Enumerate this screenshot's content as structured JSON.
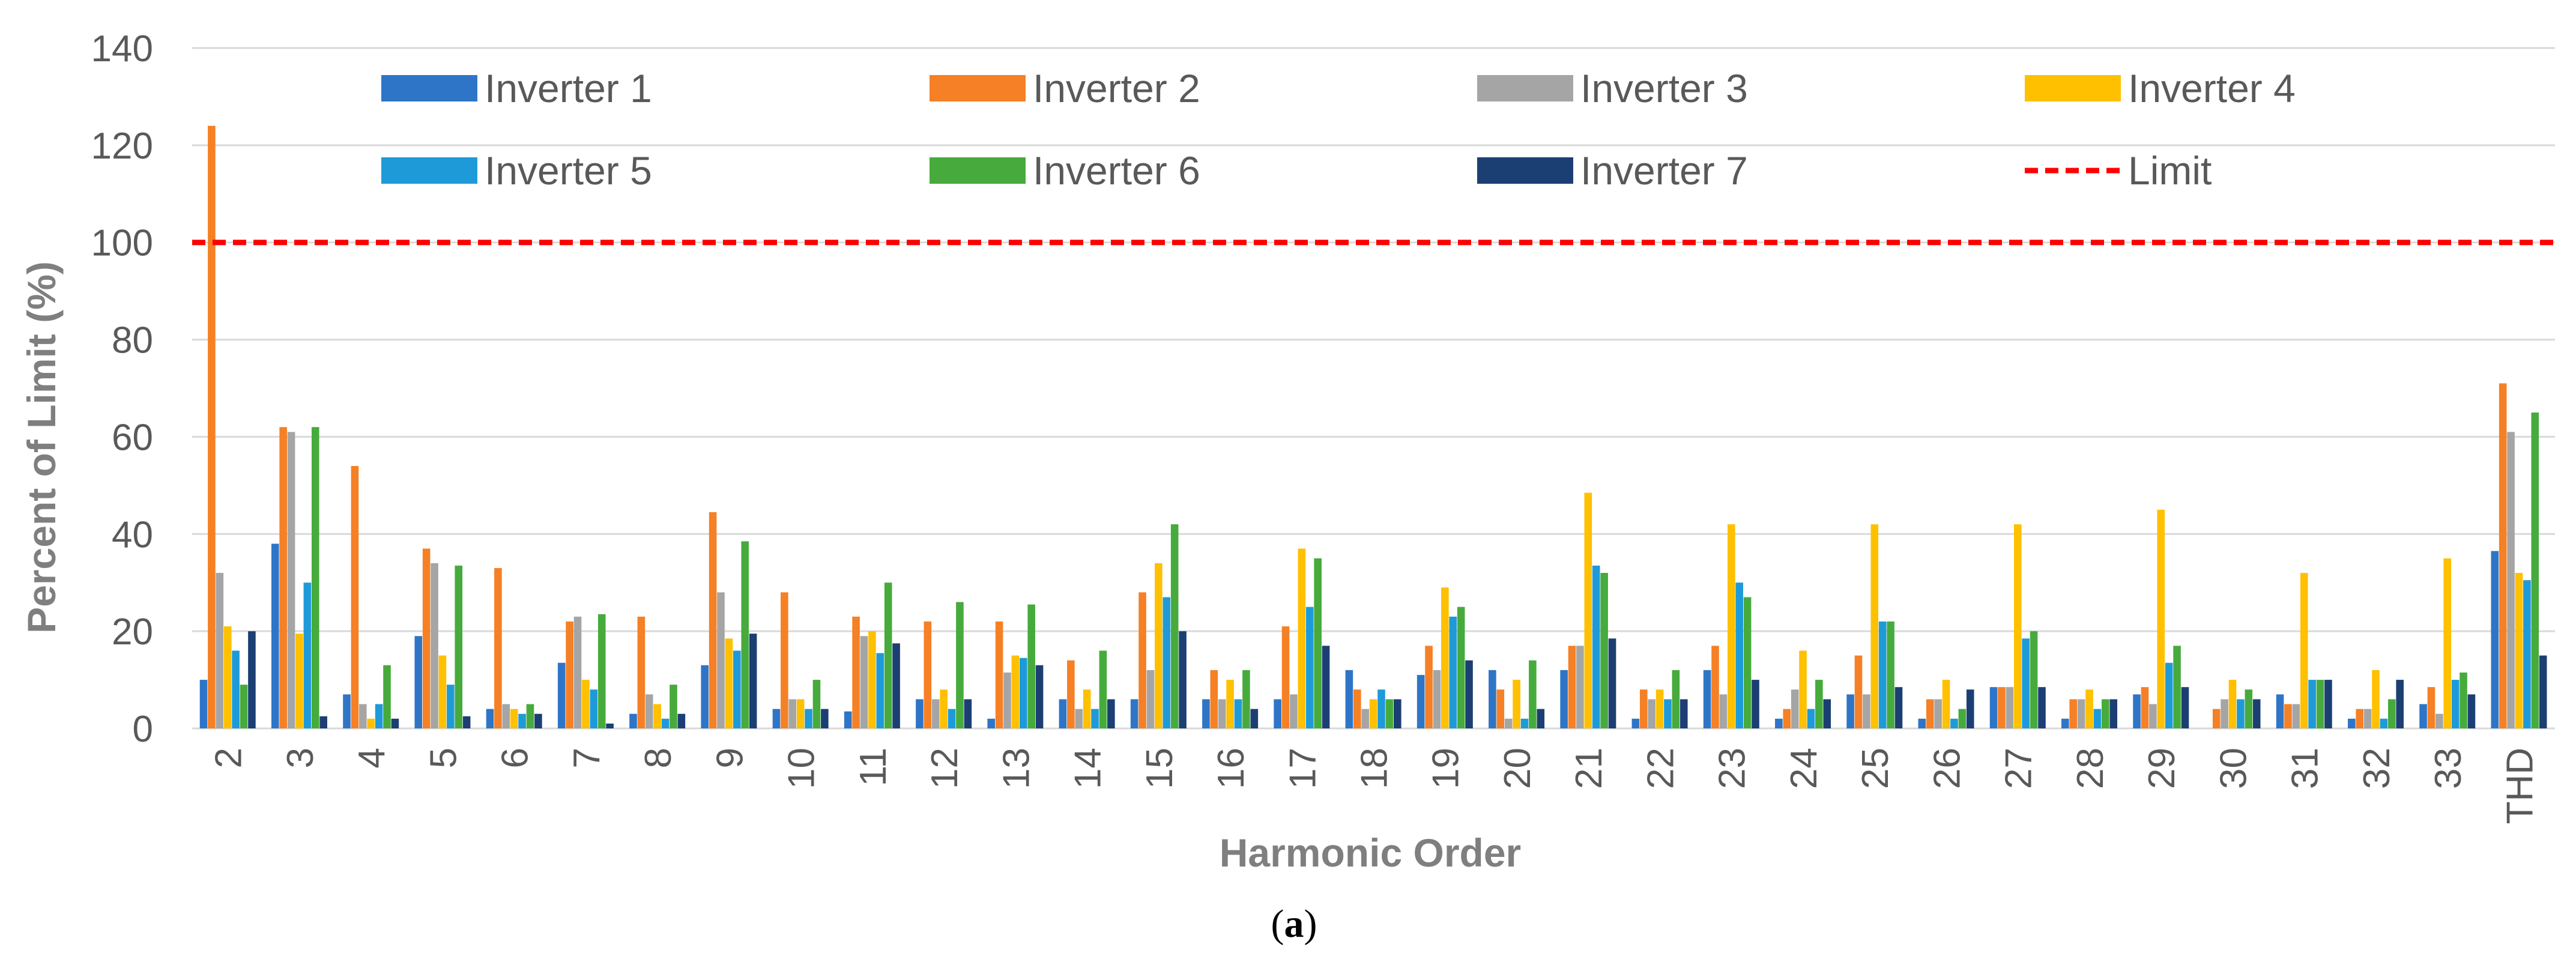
{
  "chart_data": {
    "type": "bar",
    "title": "",
    "xlabel": "Harmonic Order",
    "ylabel": "Percent of Limit (%)",
    "caption_prefix": "(",
    "caption_letter": "a",
    "caption_suffix": ")",
    "ylim": [
      0,
      140
    ],
    "yticks": [
      0,
      20,
      40,
      60,
      80,
      100,
      120,
      140
    ],
    "grid": true,
    "legend_position": "top",
    "categories": [
      "2",
      "3",
      "4",
      "5",
      "6",
      "7",
      "8",
      "9",
      "10",
      "11",
      "12",
      "13",
      "14",
      "15",
      "16",
      "17",
      "18",
      "19",
      "20",
      "21",
      "22",
      "23",
      "24",
      "25",
      "26",
      "27",
      "28",
      "29",
      "30",
      "31",
      "32",
      "33",
      "THD"
    ],
    "series": [
      {
        "name": "Inverter 1",
        "color": "#2e75c7",
        "values": [
          10,
          38,
          7,
          19,
          4,
          13.5,
          3,
          13,
          4,
          3.5,
          6,
          2,
          6,
          6,
          6,
          6,
          12,
          11,
          12,
          12,
          2,
          12,
          2,
          7,
          2,
          8.5,
          2,
          7,
          0,
          7,
          2,
          5,
          36.5
        ]
      },
      {
        "name": "Inverter 2",
        "color": "#f58025",
        "values": [
          124,
          62,
          54,
          37,
          33,
          22,
          23,
          44.5,
          28,
          23,
          22,
          22,
          14,
          28,
          12,
          21,
          8,
          17,
          8,
          17,
          8,
          17,
          4,
          15,
          6,
          8.5,
          6,
          8.5,
          4,
          5,
          4,
          8.5,
          71
        ]
      },
      {
        "name": "Inverter 3",
        "color": "#a5a5a5",
        "values": [
          32,
          61,
          5,
          34,
          5,
          23,
          7,
          28,
          6,
          19,
          6,
          11.5,
          4,
          12,
          6,
          7,
          4,
          12,
          2,
          17,
          6,
          7,
          8,
          7,
          6,
          8.5,
          6,
          5,
          6,
          5,
          4,
          3,
          61
        ]
      },
      {
        "name": "Inverter 4",
        "color": "#ffc000",
        "values": [
          21,
          19.5,
          2,
          15,
          4,
          10,
          5,
          18.5,
          6,
          20,
          8,
          15,
          8,
          34,
          10,
          37,
          6,
          29,
          10,
          48.5,
          8,
          42,
          16,
          42,
          10,
          42,
          8,
          45,
          10,
          32,
          12,
          35,
          32
        ]
      },
      {
        "name": "Inverter 5",
        "color": "#1f9ad9",
        "values": [
          16,
          30,
          5,
          9,
          3,
          8,
          2,
          16,
          4,
          15.5,
          4,
          14.5,
          4,
          27,
          6,
          25,
          8,
          23,
          2,
          33.5,
          6,
          30,
          4,
          22,
          2,
          18.5,
          4,
          13.5,
          6,
          10,
          2,
          10,
          30.5
        ]
      },
      {
        "name": "Inverter 6",
        "color": "#46ab3c",
        "values": [
          9,
          62,
          13,
          33.5,
          5,
          23.5,
          9,
          38.5,
          10,
          30,
          26,
          25.5,
          16,
          42,
          12,
          35,
          6,
          25,
          14,
          32,
          12,
          27,
          10,
          22,
          4,
          20,
          6,
          17,
          8,
          10,
          6,
          11.5,
          65
        ]
      },
      {
        "name": "Inverter 7",
        "color": "#1c3f73",
        "values": [
          20,
          2.5,
          2,
          2.5,
          3,
          1,
          3,
          19.5,
          4,
          17.5,
          6,
          13,
          6,
          20,
          4,
          17,
          6,
          14,
          4,
          18.5,
          6,
          10,
          6,
          8.5,
          8,
          8.5,
          6,
          8.5,
          6,
          10,
          10,
          7,
          15
        ]
      }
    ],
    "reference_line": {
      "name": "Limit",
      "value": 100,
      "color": "#ff0000",
      "style": "dashed"
    }
  }
}
